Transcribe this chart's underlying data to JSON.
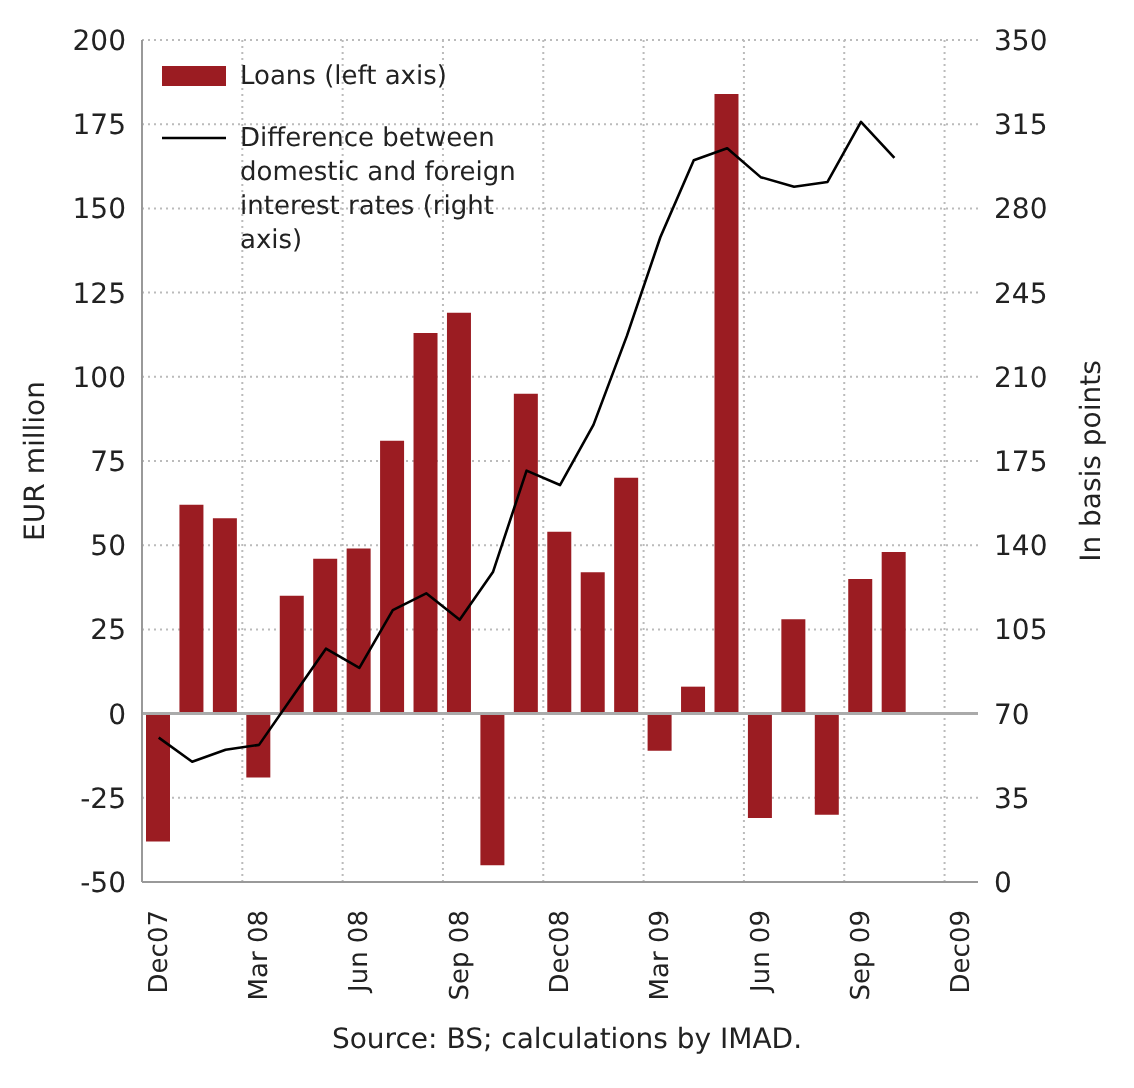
{
  "chart_data": {
    "type": "bar",
    "categories": [
      "Dec07",
      null,
      null,
      "Mar 08",
      null,
      null,
      "Jun 08",
      null,
      null,
      "Sep 08",
      null,
      null,
      "Dec08",
      null,
      null,
      "Mar 09",
      null,
      null,
      "Jun 09",
      null,
      null,
      "Sep 09",
      null,
      null,
      "Dec09"
    ],
    "series": [
      {
        "name": "Loans (left axis)",
        "color": "#9b1c22",
        "values": [
          -38,
          62,
          58,
          -19,
          35,
          46,
          49,
          81,
          113,
          119,
          -45,
          95,
          54,
          42,
          70,
          -11,
          8,
          184,
          -31,
          28,
          -30,
          40,
          48,
          null,
          null
        ]
      },
      {
        "name": "Difference between domestic and foreign interest rates (right axis)",
        "type": "line",
        "axis": "y2",
        "color": "#000000",
        "values": [
          60,
          50,
          55,
          57,
          77,
          97,
          89,
          113,
          120,
          109,
          129,
          171,
          165,
          190,
          227,
          268,
          300,
          305,
          293,
          289,
          291,
          316,
          301,
          null,
          null
        ]
      }
    ],
    "ylabel": "EUR million",
    "y2label": "In basis points",
    "ylim": [
      -50,
      200
    ],
    "yticks": [
      -50,
      -25,
      0,
      25,
      50,
      75,
      100,
      125,
      150,
      175,
      200
    ],
    "y2lim": [
      0,
      350
    ],
    "y2ticks": [
      0,
      35,
      70,
      105,
      140,
      175,
      210,
      245,
      280,
      315,
      350
    ],
    "grid": true,
    "legend": "top left",
    "marker": "none",
    "line_style": "solid",
    "annotations": [
      "Source: BS; calculations by IMAD."
    ]
  }
}
